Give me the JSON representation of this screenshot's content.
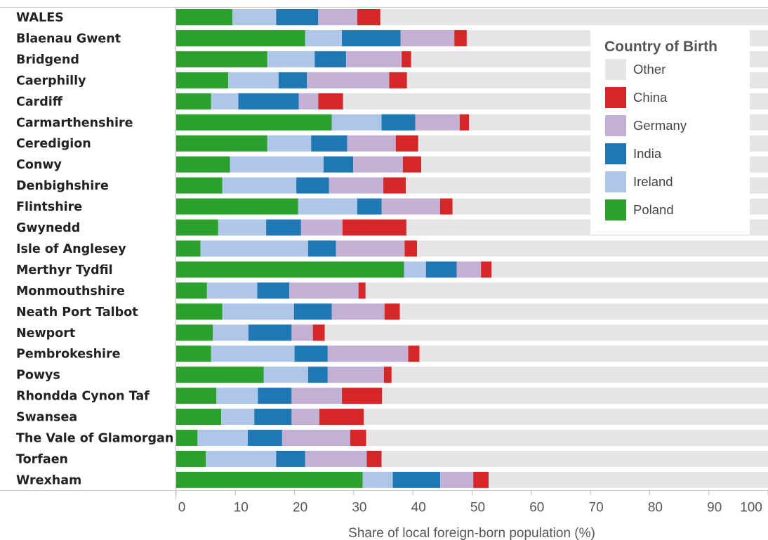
{
  "chart_data": {
    "type": "bar",
    "orientation": "horizontal",
    "stacked": true,
    "title": "",
    "xlabel": "Share of local foreign-born population (%)",
    "ylabel": "",
    "xlim": [
      0,
      100
    ],
    "xticks": [
      0,
      10,
      20,
      30,
      40,
      50,
      60,
      70,
      80,
      90,
      100
    ],
    "grid": false,
    "legend": {
      "title": "Country of Birth",
      "position": "top-right"
    },
    "categories": [
      "WALES",
      "Blaenau Gwent",
      "Bridgend",
      "Caerphilly",
      "Cardiff",
      "Carmarthenshire",
      "Ceredigion",
      "Conwy",
      "Denbighshire",
      "Flintshire",
      "Gwynedd",
      "Isle of Anglesey",
      "Merthyr Tydfil",
      "Monmouthshire",
      "Neath Port Talbot",
      "Newport",
      "Pembrokeshire",
      "Powys",
      "Rhondda Cynon Taf",
      "Swansea",
      "The Vale of Glamorgan",
      "Torfaen",
      "Wrexham"
    ],
    "legend_order": [
      "Other",
      "China",
      "Germany",
      "India",
      "Ireland",
      "Poland"
    ],
    "series": [
      {
        "name": "Poland",
        "color": "#2ca02c",
        "values": [
          9.5,
          21.8,
          15.4,
          8.8,
          5.9,
          26.3,
          15.4,
          9.1,
          7.8,
          20.6,
          7.1,
          4.1,
          38.5,
          5.2,
          7.8,
          6.2,
          5.9,
          14.8,
          6.8,
          7.6,
          3.6,
          5.0,
          31.5
        ]
      },
      {
        "name": "Ireland",
        "color": "#aec7e8",
        "values": [
          7.4,
          6.2,
          8.0,
          8.5,
          4.6,
          8.4,
          7.4,
          15.8,
          12.5,
          10.0,
          8.1,
          18.2,
          3.7,
          8.5,
          12.1,
          6.0,
          14.1,
          7.5,
          7.0,
          5.6,
          8.5,
          11.9,
          5.1
        ]
      },
      {
        "name": "India",
        "color": "#1f77b4",
        "values": [
          7.1,
          9.9,
          5.3,
          4.8,
          10.2,
          5.7,
          6.1,
          5.0,
          5.5,
          4.1,
          5.9,
          4.7,
          5.2,
          5.4,
          6.4,
          7.3,
          5.6,
          3.3,
          5.7,
          6.3,
          5.8,
          4.9,
          8.0
        ]
      },
      {
        "name": "Germany",
        "color": "#c5b0d5",
        "values": [
          6.6,
          9.1,
          9.4,
          13.9,
          3.3,
          7.5,
          8.2,
          8.4,
          9.2,
          9.9,
          7.0,
          11.6,
          4.1,
          11.7,
          8.9,
          3.6,
          13.6,
          9.5,
          8.5,
          4.7,
          11.5,
          10.4,
          5.6
        ]
      },
      {
        "name": "China",
        "color": "#d62728",
        "values": [
          3.9,
          2.1,
          1.6,
          3.0,
          4.2,
          1.6,
          3.8,
          3.1,
          3.8,
          2.1,
          10.8,
          2.1,
          1.8,
          1.2,
          2.6,
          2.0,
          1.9,
          1.3,
          6.8,
          7.5,
          2.7,
          2.5,
          2.6
        ]
      },
      {
        "name": "Other",
        "color": "#e5e5e5",
        "values": [
          65.5,
          50.9,
          60.3,
          61.0,
          71.8,
          50.5,
          59.1,
          58.6,
          61.2,
          53.3,
          61.1,
          59.3,
          46.7,
          68.0,
          62.2,
          74.9,
          58.9,
          63.6,
          65.2,
          68.3,
          67.9,
          65.3,
          47.2
        ]
      }
    ]
  }
}
